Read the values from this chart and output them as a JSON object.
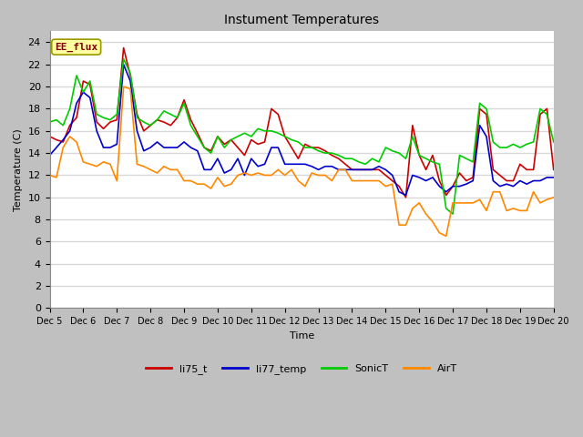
{
  "title": "Instument Temperatures",
  "xlabel": "Time",
  "ylabel": "Temperature (C)",
  "ylim": [
    0,
    25
  ],
  "yticks": [
    0,
    2,
    4,
    6,
    8,
    10,
    12,
    14,
    16,
    18,
    20,
    22,
    24
  ],
  "xtick_labels": [
    "Dec 5",
    "Dec 6",
    "Dec 7",
    "Dec 8",
    "Dec 9",
    "Dec 10",
    "Dec 11",
    "Dec 12",
    "Dec 13",
    "Dec 14",
    "Dec 15",
    "Dec 16",
    "Dec 17",
    "Dec 18",
    "Dec 19",
    "Dec 20"
  ],
  "fig_bg_color": "#c0c0c0",
  "plot_bg": "#ffffff",
  "grid_color": "#d8d8d8",
  "annotation_text": "EE_flux",
  "annotation_color": "#800000",
  "annotation_bg": "#ffffa0",
  "annotation_edge": "#999900",
  "series": {
    "li75_t": {
      "color": "#cc0000",
      "linewidth": 1.2
    },
    "li77_temp": {
      "color": "#0000cc",
      "linewidth": 1.2
    },
    "SonicT": {
      "color": "#00cc00",
      "linewidth": 1.2
    },
    "AirT": {
      "color": "#ff8800",
      "linewidth": 1.2
    }
  },
  "li75_t": [
    15.5,
    15.2,
    15.0,
    16.5,
    17.2,
    20.5,
    20.2,
    16.8,
    16.2,
    16.8,
    17.0,
    23.5,
    21.0,
    17.5,
    16.0,
    16.5,
    17.0,
    16.8,
    16.5,
    17.2,
    18.8,
    17.0,
    15.8,
    14.5,
    14.2,
    15.5,
    14.8,
    15.2,
    14.5,
    13.8,
    15.2,
    14.8,
    15.0,
    18.0,
    17.5,
    15.5,
    14.5,
    13.5,
    14.8,
    14.5,
    14.5,
    14.2,
    13.8,
    13.5,
    13.0,
    12.5,
    12.5,
    12.5,
    12.5,
    12.5,
    12.0,
    11.5,
    11.0,
    10.0,
    16.5,
    13.8,
    12.5,
    13.8,
    11.5,
    10.2,
    11.0,
    12.2,
    11.5,
    11.8,
    18.0,
    17.5,
    12.5,
    12.0,
    11.5,
    11.5,
    13.0,
    12.5,
    12.5,
    17.5,
    18.0,
    12.5
  ],
  "li77_temp": [
    13.8,
    14.5,
    15.2,
    16.0,
    18.5,
    19.5,
    19.0,
    16.0,
    14.5,
    14.5,
    14.8,
    22.0,
    20.5,
    16.0,
    14.2,
    14.5,
    15.0,
    14.5,
    14.5,
    14.5,
    15.0,
    14.5,
    14.2,
    12.5,
    12.5,
    13.5,
    12.2,
    12.5,
    13.5,
    12.0,
    13.5,
    12.8,
    13.0,
    14.5,
    14.5,
    13.0,
    13.0,
    13.0,
    13.0,
    12.8,
    12.5,
    12.8,
    12.8,
    12.5,
    12.5,
    12.5,
    12.5,
    12.5,
    12.5,
    12.8,
    12.5,
    12.0,
    10.5,
    10.2,
    12.0,
    11.8,
    11.5,
    11.8,
    11.0,
    10.5,
    11.0,
    11.0,
    11.2,
    11.5,
    16.5,
    15.5,
    11.5,
    11.0,
    11.2,
    11.0,
    11.5,
    11.2,
    11.5,
    11.5,
    11.8,
    11.8
  ],
  "SonicT": [
    16.8,
    17.0,
    16.5,
    18.0,
    21.0,
    19.5,
    20.5,
    17.5,
    17.2,
    17.0,
    17.5,
    22.5,
    21.2,
    17.2,
    16.8,
    16.5,
    17.0,
    17.8,
    17.5,
    17.2,
    18.5,
    16.5,
    15.5,
    14.5,
    14.0,
    15.5,
    14.5,
    15.2,
    15.5,
    15.8,
    15.5,
    16.2,
    16.0,
    16.0,
    15.8,
    15.5,
    15.2,
    15.0,
    14.5,
    14.5,
    14.2,
    14.0,
    14.0,
    13.8,
    13.5,
    13.5,
    13.2,
    13.0,
    13.5,
    13.2,
    14.5,
    14.2,
    14.0,
    13.5,
    15.5,
    13.8,
    13.5,
    13.2,
    13.0,
    9.0,
    8.5,
    13.8,
    13.5,
    13.2,
    18.5,
    18.0,
    15.0,
    14.5,
    14.5,
    14.8,
    14.5,
    14.8,
    15.0,
    18.0,
    17.5,
    15.0
  ],
  "AirT": [
    12.0,
    11.8,
    14.5,
    15.5,
    15.0,
    13.2,
    13.0,
    12.8,
    13.2,
    13.0,
    11.5,
    20.0,
    19.8,
    13.0,
    12.8,
    12.5,
    12.2,
    12.8,
    12.5,
    12.5,
    11.5,
    11.5,
    11.2,
    11.2,
    10.8,
    11.8,
    11.0,
    11.2,
    12.0,
    12.2,
    12.0,
    12.2,
    12.0,
    12.0,
    12.5,
    12.0,
    12.5,
    11.5,
    11.0,
    12.2,
    12.0,
    12.0,
    11.5,
    12.5,
    12.5,
    11.5,
    11.5,
    11.5,
    11.5,
    11.5,
    11.0,
    11.2,
    7.5,
    7.5,
    9.0,
    9.5,
    8.5,
    7.8,
    6.8,
    6.5,
    9.5,
    9.5,
    9.5,
    9.5,
    9.8,
    8.8,
    10.5,
    10.5,
    8.8,
    9.0,
    8.8,
    8.8,
    10.5,
    9.5,
    9.8,
    10.0
  ]
}
